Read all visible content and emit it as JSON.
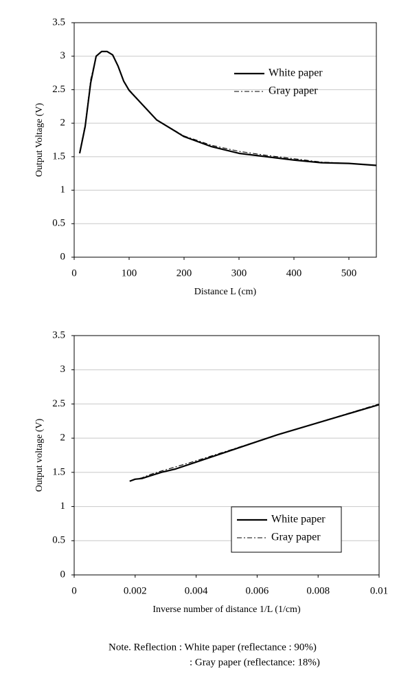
{
  "chart_data": [
    {
      "type": "line",
      "x_label": "Distance L (cm)",
      "y_label": "Output Voltage (V)",
      "xlim": [
        0,
        550
      ],
      "xticks": [
        0,
        100,
        200,
        300,
        400,
        500
      ],
      "ylim": [
        0,
        3.5
      ],
      "yticks": [
        0,
        0.5,
        1,
        1.5,
        2,
        2.5,
        3,
        3.5
      ],
      "grid": true,
      "legend": "upper right",
      "x": [
        10,
        20,
        30,
        40,
        50,
        60,
        70,
        80,
        90,
        100,
        150,
        200,
        250,
        300,
        350,
        400,
        450,
        500,
        550
      ],
      "series": [
        {
          "name": "White paper",
          "color": "#000000",
          "style": "solid",
          "values": [
            1.55,
            1.95,
            2.6,
            3.0,
            3.07,
            3.07,
            3.02,
            2.85,
            2.63,
            2.49,
            2.05,
            1.8,
            1.65,
            1.55,
            1.5,
            1.45,
            1.41,
            1.4,
            1.37
          ]
        },
        {
          "name": "Gray paper",
          "color": "#000000",
          "style": "dashdot",
          "values": [
            1.57,
            1.98,
            2.65,
            3.0,
            3.07,
            3.07,
            3.02,
            2.85,
            2.63,
            2.5,
            2.05,
            1.81,
            1.67,
            1.58,
            1.52,
            1.47,
            1.42,
            1.4,
            1.37
          ]
        }
      ]
    },
    {
      "type": "line",
      "x_label": "Inverse number of distance 1/L (1/cm)",
      "y_label": "Output voltage (V)",
      "xlim": [
        0,
        0.01
      ],
      "xticks": [
        0,
        0.002,
        0.004,
        0.006,
        0.008,
        0.01
      ],
      "ylim": [
        0,
        3.5
      ],
      "yticks": [
        0,
        0.5,
        1,
        1.5,
        2,
        2.5,
        3,
        3.5
      ],
      "grid": true,
      "legend": "lower right",
      "x": [
        0.00182,
        0.002,
        0.00222,
        0.0025,
        0.00286,
        0.00333,
        0.004,
        0.005,
        0.00667,
        0.01
      ],
      "series": [
        {
          "name": "White paper",
          "color": "#000000",
          "style": "solid",
          "values": [
            1.37,
            1.4,
            1.41,
            1.45,
            1.5,
            1.55,
            1.65,
            1.8,
            2.05,
            2.49
          ]
        },
        {
          "name": "Gray paper",
          "color": "#000000",
          "style": "dashdot",
          "values": [
            1.37,
            1.4,
            1.42,
            1.47,
            1.52,
            1.58,
            1.67,
            1.81,
            2.05,
            2.5
          ]
        }
      ]
    }
  ],
  "note": [
    "Note. Reflection : White paper (reflectance : 90%)",
    ": Gray paper (reflectance: 18%)"
  ]
}
